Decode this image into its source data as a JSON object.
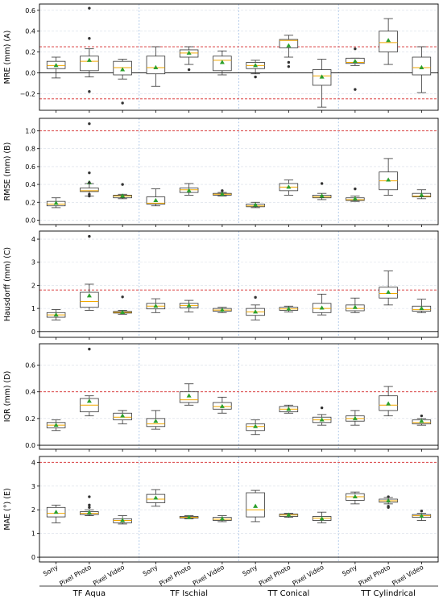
{
  "chart_data": {
    "type": "box",
    "sub_labels": [
      "Sony",
      "Pixel Photo",
      "Pixel Video"
    ],
    "groups": [
      "TF Aqua",
      "TF Ischial",
      "TT Conical",
      "TT Cylindrical"
    ],
    "colors": {
      "box": "#333333",
      "median": "#f2a900",
      "mean": "#2ca02c",
      "threshold": "#d62728",
      "group_separator": "#aec7e8",
      "grid": "#d8dde6"
    },
    "panels": [
      {
        "id": "mre",
        "ylabel": "MRE (mm) (A)",
        "ylim": [
          -0.36,
          0.66
        ],
        "yticks": [
          -0.2,
          0.0,
          0.2,
          0.4,
          0.6
        ],
        "tick_labels": [
          "−0.2",
          "0.0",
          "0.2",
          "0.4",
          "0.6"
        ],
        "thresholds": [
          0.25,
          -0.25
        ],
        "zero_line": true,
        "boxes": [
          {
            "q1": 0.04,
            "median": 0.07,
            "q3": 0.11,
            "wlo": -0.05,
            "whi": 0.15,
            "mean": 0.07,
            "fliers": []
          },
          {
            "q1": 0.02,
            "median": 0.11,
            "q3": 0.16,
            "wlo": -0.04,
            "whi": 0.23,
            "mean": 0.12,
            "fliers": [
              0.62,
              0.33,
              -0.18
            ]
          },
          {
            "q1": -0.02,
            "median": 0.05,
            "q3": 0.11,
            "wlo": -0.06,
            "whi": 0.13,
            "mean": 0.03,
            "fliers": [
              -0.29
            ]
          },
          {
            "q1": -0.01,
            "median": 0.05,
            "q3": 0.16,
            "wlo": -0.13,
            "whi": 0.25,
            "mean": 0.05,
            "fliers": []
          },
          {
            "q1": 0.15,
            "median": 0.19,
            "q3": 0.22,
            "wlo": 0.08,
            "whi": 0.25,
            "mean": 0.19,
            "fliers": [
              0.03
            ]
          },
          {
            "q1": 0.02,
            "median": 0.12,
            "q3": 0.16,
            "wlo": -0.02,
            "whi": 0.21,
            "mean": 0.1,
            "fliers": []
          },
          {
            "q1": 0.04,
            "median": 0.07,
            "q3": 0.1,
            "wlo": -0.01,
            "whi": 0.12,
            "mean": 0.07,
            "fliers": [
              -0.04
            ]
          },
          {
            "q1": 0.24,
            "median": 0.31,
            "q3": 0.32,
            "wlo": 0.15,
            "whi": 0.36,
            "mean": 0.26,
            "fliers": [
              0.1,
              0.06
            ]
          },
          {
            "q1": -0.12,
            "median": -0.03,
            "q3": 0.03,
            "wlo": -0.33,
            "whi": 0.13,
            "mean": -0.04,
            "fliers": []
          },
          {
            "q1": 0.09,
            "median": 0.1,
            "q3": 0.14,
            "wlo": 0.07,
            "whi": 0.14,
            "mean": 0.11,
            "fliers": [
              0.23,
              -0.16
            ]
          },
          {
            "q1": 0.2,
            "median": 0.29,
            "q3": 0.4,
            "wlo": 0.08,
            "whi": 0.52,
            "mean": 0.31,
            "fliers": []
          },
          {
            "q1": -0.02,
            "median": 0.05,
            "q3": 0.15,
            "wlo": -0.19,
            "whi": 0.25,
            "mean": 0.05,
            "fliers": []
          }
        ]
      },
      {
        "id": "rmse",
        "ylabel": "RMSE (mm) (B)",
        "ylim": [
          -0.05,
          1.14
        ],
        "yticks": [
          0.0,
          0.2,
          0.4,
          0.6,
          0.8,
          1.0
        ],
        "tick_labels": [
          "0.0",
          "0.2",
          "0.4",
          "0.6",
          "0.8",
          "1.0"
        ],
        "thresholds": [
          1.0
        ],
        "zero_line": false,
        "boxes": [
          {
            "q1": 0.16,
            "median": 0.18,
            "q3": 0.21,
            "wlo": 0.14,
            "whi": 0.25,
            "mean": 0.19,
            "fliers": []
          },
          {
            "q1": 0.32,
            "median": 0.33,
            "q3": 0.36,
            "wlo": 0.27,
            "whi": 0.41,
            "mean": 0.42,
            "fliers": [
              1.08,
              0.53,
              0.42,
              0.29,
              0.27
            ]
          },
          {
            "q1": 0.25,
            "median": 0.27,
            "q3": 0.28,
            "wlo": 0.24,
            "whi": 0.29,
            "mean": 0.27,
            "fliers": [
              0.4
            ]
          },
          {
            "q1": 0.18,
            "median": 0.19,
            "q3": 0.26,
            "wlo": 0.16,
            "whi": 0.35,
            "mean": 0.22,
            "fliers": []
          },
          {
            "q1": 0.31,
            "median": 0.34,
            "q3": 0.36,
            "wlo": 0.28,
            "whi": 0.41,
            "mean": 0.33,
            "fliers": []
          },
          {
            "q1": 0.28,
            "median": 0.29,
            "q3": 0.3,
            "wlo": 0.27,
            "whi": 0.31,
            "mean": 0.29,
            "fliers": [
              0.33
            ]
          },
          {
            "q1": 0.15,
            "median": 0.16,
            "q3": 0.18,
            "wlo": 0.14,
            "whi": 0.2,
            "mean": 0.17,
            "fliers": []
          },
          {
            "q1": 0.33,
            "median": 0.37,
            "q3": 0.41,
            "wlo": 0.28,
            "whi": 0.45,
            "mean": 0.37,
            "fliers": []
          },
          {
            "q1": 0.25,
            "median": 0.26,
            "q3": 0.28,
            "wlo": 0.23,
            "whi": 0.3,
            "mean": 0.27,
            "fliers": [
              0.41
            ]
          },
          {
            "q1": 0.22,
            "median": 0.23,
            "q3": 0.25,
            "wlo": 0.21,
            "whi": 0.27,
            "mean": 0.24,
            "fliers": [
              0.35
            ]
          },
          {
            "q1": 0.34,
            "median": 0.44,
            "q3": 0.54,
            "wlo": 0.28,
            "whi": 0.69,
            "mean": 0.45,
            "fliers": []
          },
          {
            "q1": 0.26,
            "median": 0.27,
            "q3": 0.3,
            "wlo": 0.24,
            "whi": 0.34,
            "mean": 0.28,
            "fliers": []
          }
        ]
      },
      {
        "id": "hausdorff",
        "ylabel": "Hausdorff (mm) (C)",
        "ylim": [
          -0.25,
          4.35
        ],
        "yticks": [
          0,
          1,
          2,
          3,
          4
        ],
        "tick_labels": [
          "0",
          "1",
          "2",
          "3",
          "4"
        ],
        "thresholds": [
          1.8
        ],
        "zero_line": true,
        "boxes": [
          {
            "q1": 0.62,
            "median": 0.72,
            "q3": 0.82,
            "wlo": 0.5,
            "whi": 0.95,
            "mean": 0.72,
            "fliers": []
          },
          {
            "q1": 1.05,
            "median": 1.3,
            "q3": 1.7,
            "wlo": 0.92,
            "whi": 2.05,
            "mean": 1.55,
            "fliers": [
              4.12
            ]
          },
          {
            "q1": 0.8,
            "median": 0.83,
            "q3": 0.87,
            "wlo": 0.75,
            "whi": 0.92,
            "mean": 0.83,
            "fliers": [
              1.5
            ]
          },
          {
            "q1": 0.98,
            "median": 1.1,
            "q3": 1.22,
            "wlo": 0.82,
            "whi": 1.42,
            "mean": 1.1,
            "fliers": []
          },
          {
            "q1": 1.02,
            "median": 1.12,
            "q3": 1.22,
            "wlo": 0.85,
            "whi": 1.35,
            "mean": 1.12,
            "fliers": []
          },
          {
            "q1": 0.88,
            "median": 0.93,
            "q3": 1.0,
            "wlo": 0.82,
            "whi": 1.05,
            "mean": 0.93,
            "fliers": []
          },
          {
            "q1": 0.7,
            "median": 0.85,
            "q3": 1.0,
            "wlo": 0.5,
            "whi": 1.15,
            "mean": 0.85,
            "fliers": [
              1.48
            ]
          },
          {
            "q1": 0.92,
            "median": 0.98,
            "q3": 1.05,
            "wlo": 0.85,
            "whi": 1.1,
            "mean": 0.98,
            "fliers": []
          },
          {
            "q1": 0.82,
            "median": 1.0,
            "q3": 1.22,
            "wlo": 0.72,
            "whi": 1.62,
            "mean": 1.02,
            "fliers": []
          },
          {
            "q1": 0.9,
            "median": 1.0,
            "q3": 1.15,
            "wlo": 0.82,
            "whi": 1.45,
            "mean": 1.05,
            "fliers": []
          },
          {
            "q1": 1.45,
            "median": 1.65,
            "q3": 1.92,
            "wlo": 1.15,
            "whi": 2.62,
            "mean": 1.7,
            "fliers": []
          },
          {
            "q1": 0.88,
            "median": 0.95,
            "q3": 1.1,
            "wlo": 0.82,
            "whi": 1.4,
            "mean": 1.0,
            "fliers": []
          }
        ]
      },
      {
        "id": "iqr",
        "ylabel": "IQR (mm) (D)",
        "ylim": [
          -0.03,
          0.76
        ],
        "yticks": [
          0.0,
          0.2,
          0.4,
          0.6
        ],
        "tick_labels": [
          "0.0",
          "0.2",
          "0.4",
          "0.6"
        ],
        "thresholds": [
          0.4
        ],
        "zero_line": true,
        "boxes": [
          {
            "q1": 0.13,
            "median": 0.15,
            "q3": 0.17,
            "wlo": 0.11,
            "whi": 0.19,
            "mean": 0.15,
            "fliers": []
          },
          {
            "q1": 0.25,
            "median": 0.3,
            "q3": 0.35,
            "wlo": 0.22,
            "whi": 0.37,
            "mean": 0.33,
            "fliers": [
              0.72
            ]
          },
          {
            "q1": 0.19,
            "median": 0.21,
            "q3": 0.24,
            "wlo": 0.16,
            "whi": 0.26,
            "mean": 0.22,
            "fliers": []
          },
          {
            "q1": 0.14,
            "median": 0.16,
            "q3": 0.2,
            "wlo": 0.12,
            "whi": 0.26,
            "mean": 0.18,
            "fliers": []
          },
          {
            "q1": 0.32,
            "median": 0.34,
            "q3": 0.4,
            "wlo": 0.3,
            "whi": 0.46,
            "mean": 0.37,
            "fliers": []
          },
          {
            "q1": 0.27,
            "median": 0.29,
            "q3": 0.32,
            "wlo": 0.24,
            "whi": 0.36,
            "mean": 0.29,
            "fliers": []
          },
          {
            "q1": 0.11,
            "median": 0.14,
            "q3": 0.16,
            "wlo": 0.08,
            "whi": 0.19,
            "mean": 0.14,
            "fliers": []
          },
          {
            "q1": 0.25,
            "median": 0.27,
            "q3": 0.29,
            "wlo": 0.24,
            "whi": 0.3,
            "mean": 0.27,
            "fliers": []
          },
          {
            "q1": 0.17,
            "median": 0.19,
            "q3": 0.21,
            "wlo": 0.15,
            "whi": 0.23,
            "mean": 0.19,
            "fliers": [
              0.28
            ]
          },
          {
            "q1": 0.18,
            "median": 0.2,
            "q3": 0.22,
            "wlo": 0.15,
            "whi": 0.26,
            "mean": 0.2,
            "fliers": []
          },
          {
            "q1": 0.26,
            "median": 0.3,
            "q3": 0.37,
            "wlo": 0.22,
            "whi": 0.44,
            "mean": 0.31,
            "fliers": []
          },
          {
            "q1": 0.16,
            "median": 0.17,
            "q3": 0.19,
            "wlo": 0.15,
            "whi": 0.2,
            "mean": 0.18,
            "fliers": [
              0.22
            ]
          }
        ]
      },
      {
        "id": "mae",
        "ylabel": "MAE (°) (E)",
        "ylim": [
          -0.2,
          4.25
        ],
        "yticks": [
          0,
          1,
          2,
          3,
          4
        ],
        "tick_labels": [
          "0",
          "1",
          "2",
          "3",
          "4"
        ],
        "thresholds": [
          4.0
        ],
        "zero_line": true,
        "boxes": [
          {
            "q1": 1.7,
            "median": 1.85,
            "q3": 2.1,
            "wlo": 1.45,
            "whi": 2.2,
            "mean": 1.9,
            "fliers": []
          },
          {
            "q1": 1.8,
            "median": 1.85,
            "q3": 1.92,
            "wlo": 1.75,
            "whi": 2.0,
            "mean": 1.88,
            "fliers": [
              2.55,
              2.2,
              2.1
            ]
          },
          {
            "q1": 1.45,
            "median": 1.55,
            "q3": 1.62,
            "wlo": 1.4,
            "whi": 1.75,
            "mean": 1.55,
            "fliers": []
          },
          {
            "q1": 2.3,
            "median": 2.45,
            "q3": 2.65,
            "wlo": 2.15,
            "whi": 2.85,
            "mean": 2.5,
            "fliers": []
          },
          {
            "q1": 1.65,
            "median": 1.68,
            "q3": 1.72,
            "wlo": 1.62,
            "whi": 1.75,
            "mean": 1.68,
            "fliers": []
          },
          {
            "q1": 1.55,
            "median": 1.6,
            "q3": 1.68,
            "wlo": 1.5,
            "whi": 1.75,
            "mean": 1.62,
            "fliers": []
          },
          {
            "q1": 1.7,
            "median": 2.0,
            "q3": 2.72,
            "wlo": 1.5,
            "whi": 2.82,
            "mean": 2.15,
            "fliers": []
          },
          {
            "q1": 1.72,
            "median": 1.78,
            "q3": 1.82,
            "wlo": 1.68,
            "whi": 1.85,
            "mean": 1.78,
            "fliers": []
          },
          {
            "q1": 1.55,
            "median": 1.65,
            "q3": 1.72,
            "wlo": 1.45,
            "whi": 1.9,
            "mean": 1.62,
            "fliers": []
          },
          {
            "q1": 2.4,
            "median": 2.55,
            "q3": 2.68,
            "wlo": 2.25,
            "whi": 2.75,
            "mean": 2.55,
            "fliers": []
          },
          {
            "q1": 2.32,
            "median": 2.38,
            "q3": 2.45,
            "wlo": 2.25,
            "whi": 2.52,
            "mean": 2.38,
            "fliers": [
              2.55,
              2.15,
              2.1
            ]
          },
          {
            "q1": 1.68,
            "median": 1.75,
            "q3": 1.8,
            "wlo": 1.55,
            "whi": 1.85,
            "mean": 1.73,
            "fliers": [
              1.95
            ]
          }
        ]
      }
    ]
  }
}
